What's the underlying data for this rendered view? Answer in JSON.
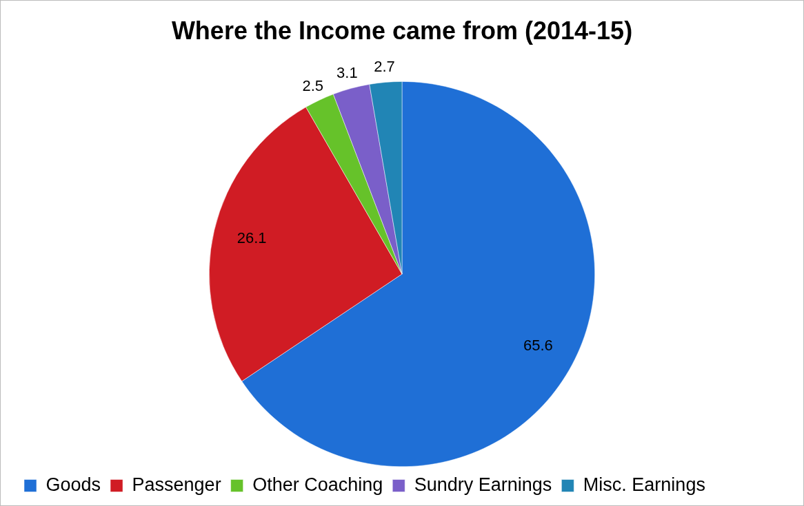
{
  "chart_data": {
    "type": "pie",
    "title": "Where the Income came from (2014-15)",
    "categories": [
      "Goods",
      "Passenger",
      "Other Coaching",
      "Sundry Earnings",
      "Misc. Earnings"
    ],
    "values": [
      65.6,
      26.1,
      2.5,
      3.1,
      2.7
    ],
    "colors": [
      "#1f6fd6",
      "#d01c24",
      "#66c22a",
      "#7a5fc9",
      "#2185b5"
    ],
    "data_labels": true,
    "legend": "bottom"
  }
}
